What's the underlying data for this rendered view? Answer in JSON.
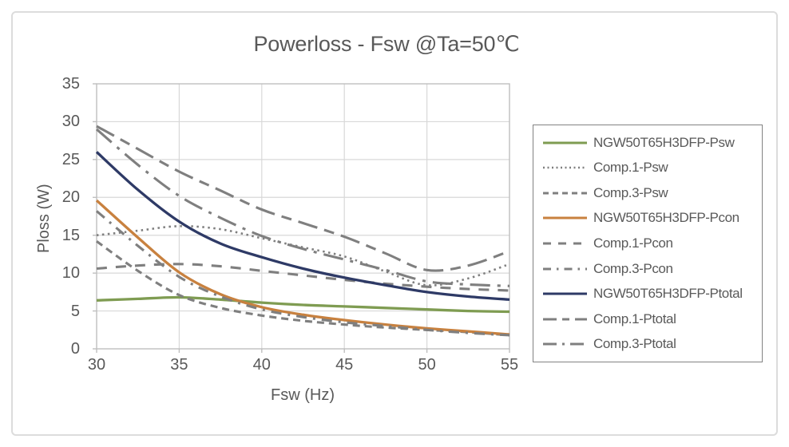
{
  "page": {
    "title": "Powerloss - Fsw @Ta=50℃"
  },
  "chart_data": {
    "type": "line",
    "title": "Powerloss - Fsw @Ta=50℃",
    "xlabel": "Fsw (Hz)",
    "ylabel": "Ploss (W)",
    "xlim": [
      30,
      55
    ],
    "ylim": [
      0,
      35
    ],
    "xticks": [
      30,
      35,
      40,
      45,
      50,
      55
    ],
    "yticks": [
      0,
      5,
      10,
      15,
      20,
      25,
      30,
      35
    ],
    "grid": true,
    "legend_position": "right-outside",
    "x": [
      30,
      32.5,
      35,
      37.5,
      40,
      42.5,
      45,
      47.5,
      50,
      52.5,
      55
    ],
    "series": [
      {
        "name": "NGW50T65H3DFP-Psw",
        "color": "#7f9c52",
        "dash_style": "solid",
        "values": [
          6.4,
          6.6,
          6.8,
          6.5,
          6.1,
          5.8,
          5.6,
          5.4,
          5.2,
          5.0,
          4.9
        ]
      },
      {
        "name": "Comp.1-Psw",
        "color": "#7f7f7f",
        "dash_style": "dotted",
        "values": [
          15.0,
          15.6,
          16.2,
          15.8,
          14.6,
          13.4,
          12.2,
          10.2,
          8.4,
          9.3,
          11.2
        ]
      },
      {
        "name": "Comp.3-Psw",
        "color": "#7f7f7f",
        "dash_style": "dash-short",
        "values": [
          14.2,
          10.3,
          7.1,
          5.4,
          4.4,
          3.7,
          3.2,
          2.8,
          2.5,
          2.2,
          1.8
        ]
      },
      {
        "name": "NGW50T65H3DFP-Pcon",
        "color": "#c8813f",
        "dash_style": "solid",
        "values": [
          19.6,
          14.7,
          10.1,
          7.2,
          5.5,
          4.5,
          3.8,
          3.2,
          2.7,
          2.3,
          1.9
        ]
      },
      {
        "name": "Comp.1-Pcon",
        "color": "#7f7f7f",
        "dash_style": "dash-wide",
        "values": [
          10.6,
          11.0,
          11.2,
          10.9,
          10.3,
          9.7,
          9.1,
          8.6,
          8.2,
          7.9,
          7.7
        ]
      },
      {
        "name": "Comp.3-Pcon",
        "color": "#7f7f7f",
        "dash_style": "dash-dot",
        "values": [
          18.2,
          13.6,
          9.5,
          6.9,
          5.2,
          4.2,
          3.5,
          3.0,
          2.5,
          2.1,
          1.8
        ]
      },
      {
        "name": "NGW50T65H3DFP-Ptotal",
        "color": "#2e3a66",
        "dash_style": "solid",
        "values": [
          26.0,
          21.0,
          16.8,
          13.9,
          12.1,
          10.6,
          9.4,
          8.4,
          7.5,
          6.9,
          6.5
        ]
      },
      {
        "name": "Comp.1-Ptotal",
        "color": "#7f7f7f",
        "dash_style": "longdash-dash",
        "values": [
          29.4,
          26.4,
          23.4,
          20.9,
          18.4,
          16.6,
          14.8,
          12.6,
          10.4,
          11.0,
          12.9
        ]
      },
      {
        "name": "Comp.3-Ptotal",
        "color": "#7f7f7f",
        "dash_style": "longdash-dot",
        "values": [
          29.0,
          24.3,
          20.2,
          17.3,
          14.9,
          13.2,
          11.8,
          10.4,
          8.9,
          8.5,
          8.3
        ]
      }
    ]
  },
  "colors": {
    "text": "#595959",
    "grid": "#d8d8d8",
    "plot_border": "#bfbfbf",
    "legend_border": "#828282",
    "card_border": "#dcdcdc",
    "green": "#7f9c52",
    "orange": "#c8813f",
    "navy": "#2e3a66",
    "gray": "#7f7f7f"
  }
}
